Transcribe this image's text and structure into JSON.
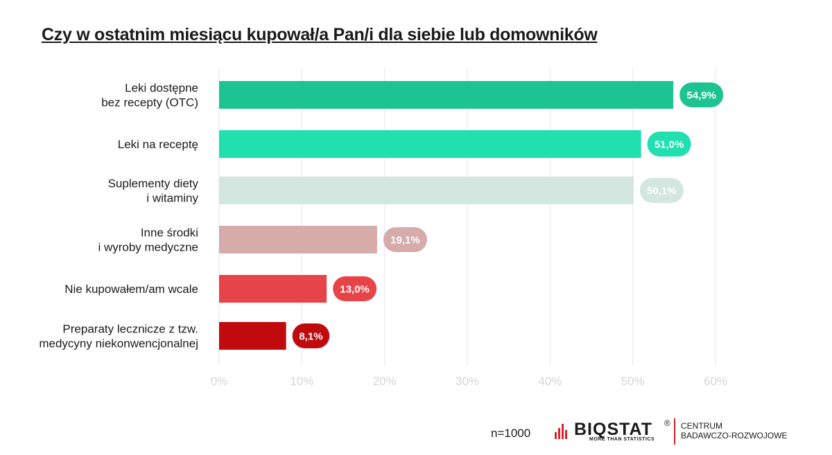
{
  "title": "Czy w ostatnim miesiącu kupował/a Pan/i dla siebie lub domowników",
  "chart_data": {
    "type": "bar",
    "orientation": "horizontal",
    "categories": [
      [
        "Leki dostępne",
        "bez recepty (OTC)"
      ],
      [
        "Leki na receptę"
      ],
      [
        "Suplementy diety",
        "i witaminy"
      ],
      [
        "Inne środki",
        "i wyroby medyczne"
      ],
      [
        "Nie kupowałem/am wcale"
      ],
      [
        "Preparaty lecznicze z tzw.",
        "medycyny  niekonwencjonalnej"
      ]
    ],
    "values": [
      54.9,
      51.0,
      50.1,
      19.1,
      13.0,
      8.1
    ],
    "value_labels": [
      "54,9%",
      "51,0%",
      "50,1%",
      "19,1%",
      "13,0%",
      "8,1%"
    ],
    "colors": [
      "#1dc391",
      "#1fe0ae",
      "#d3e6e0",
      "#d6acab",
      "#e64448",
      "#c00a0e"
    ],
    "xlim": [
      0,
      60
    ],
    "xticks": [
      0,
      10,
      20,
      30,
      40,
      50,
      60
    ],
    "xtick_labels": [
      "0%",
      "10%",
      "20%",
      "30%",
      "40%",
      "50%",
      "60%"
    ],
    "grid": true,
    "xlabel": "",
    "ylabel": ""
  },
  "footer": {
    "sample": "n=1000",
    "logo_text": "BIQSTAT",
    "logo_reg": "®",
    "logo_tagline": "MORE THAN STATISTICS",
    "division_line1": "CENTRUM",
    "division_line2": "BADAWCZO-ROZWOJOWE",
    "accent_color": "#d9252a"
  }
}
